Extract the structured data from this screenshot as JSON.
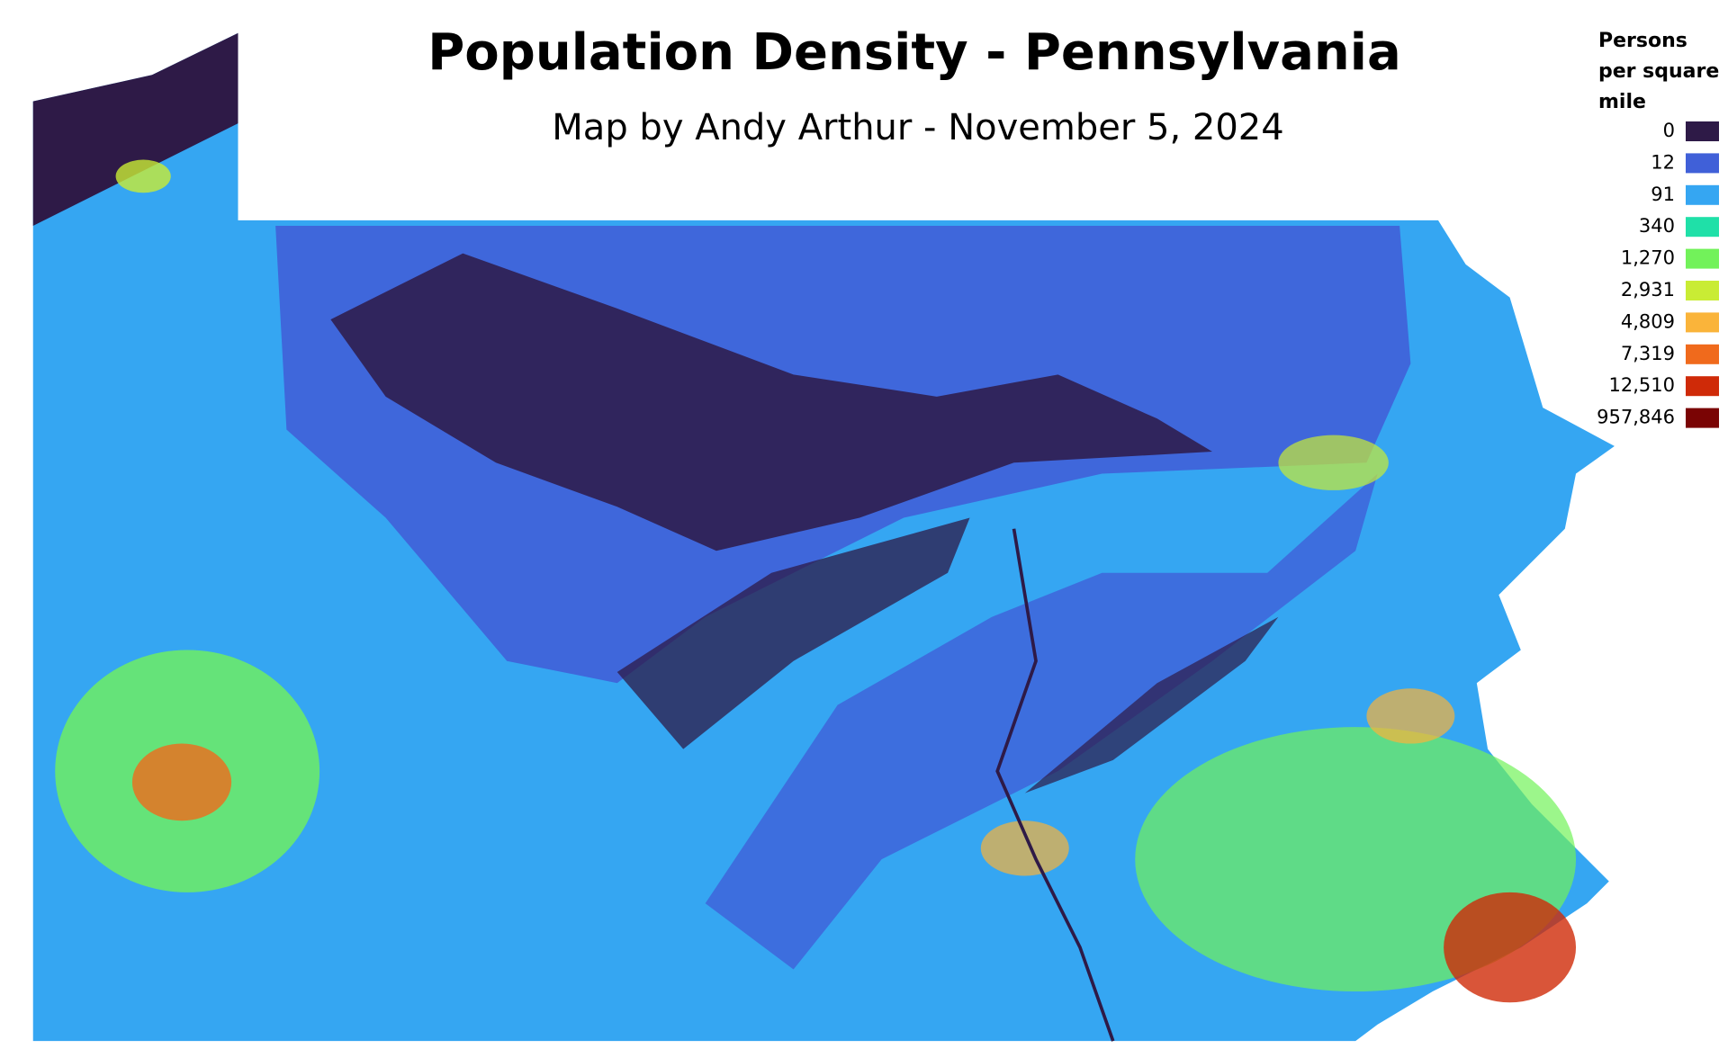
{
  "header": {
    "title": "Population Density - Pennsylvania",
    "subtitle": "Map by Andy Arthur - November 5, 2024"
  },
  "legend": {
    "title": [
      "Persons",
      "per square",
      "mile"
    ],
    "items": [
      {
        "label": "0",
        "color": "#2e1a47"
      },
      {
        "label": "12",
        "color": "#4060d8"
      },
      {
        "label": "91",
        "color": "#35a6f2"
      },
      {
        "label": "340",
        "color": "#1fe0a8"
      },
      {
        "label": "1,270",
        "color": "#72f25a"
      },
      {
        "label": "2,931",
        "color": "#c9ec34"
      },
      {
        "label": "4,809",
        "color": "#fab43a"
      },
      {
        "label": "7,319",
        "color": "#f06a1c"
      },
      {
        "label": "12,510",
        "color": "#cf2a08"
      },
      {
        "label": "957,846",
        "color": "#7a0404"
      }
    ]
  }
}
